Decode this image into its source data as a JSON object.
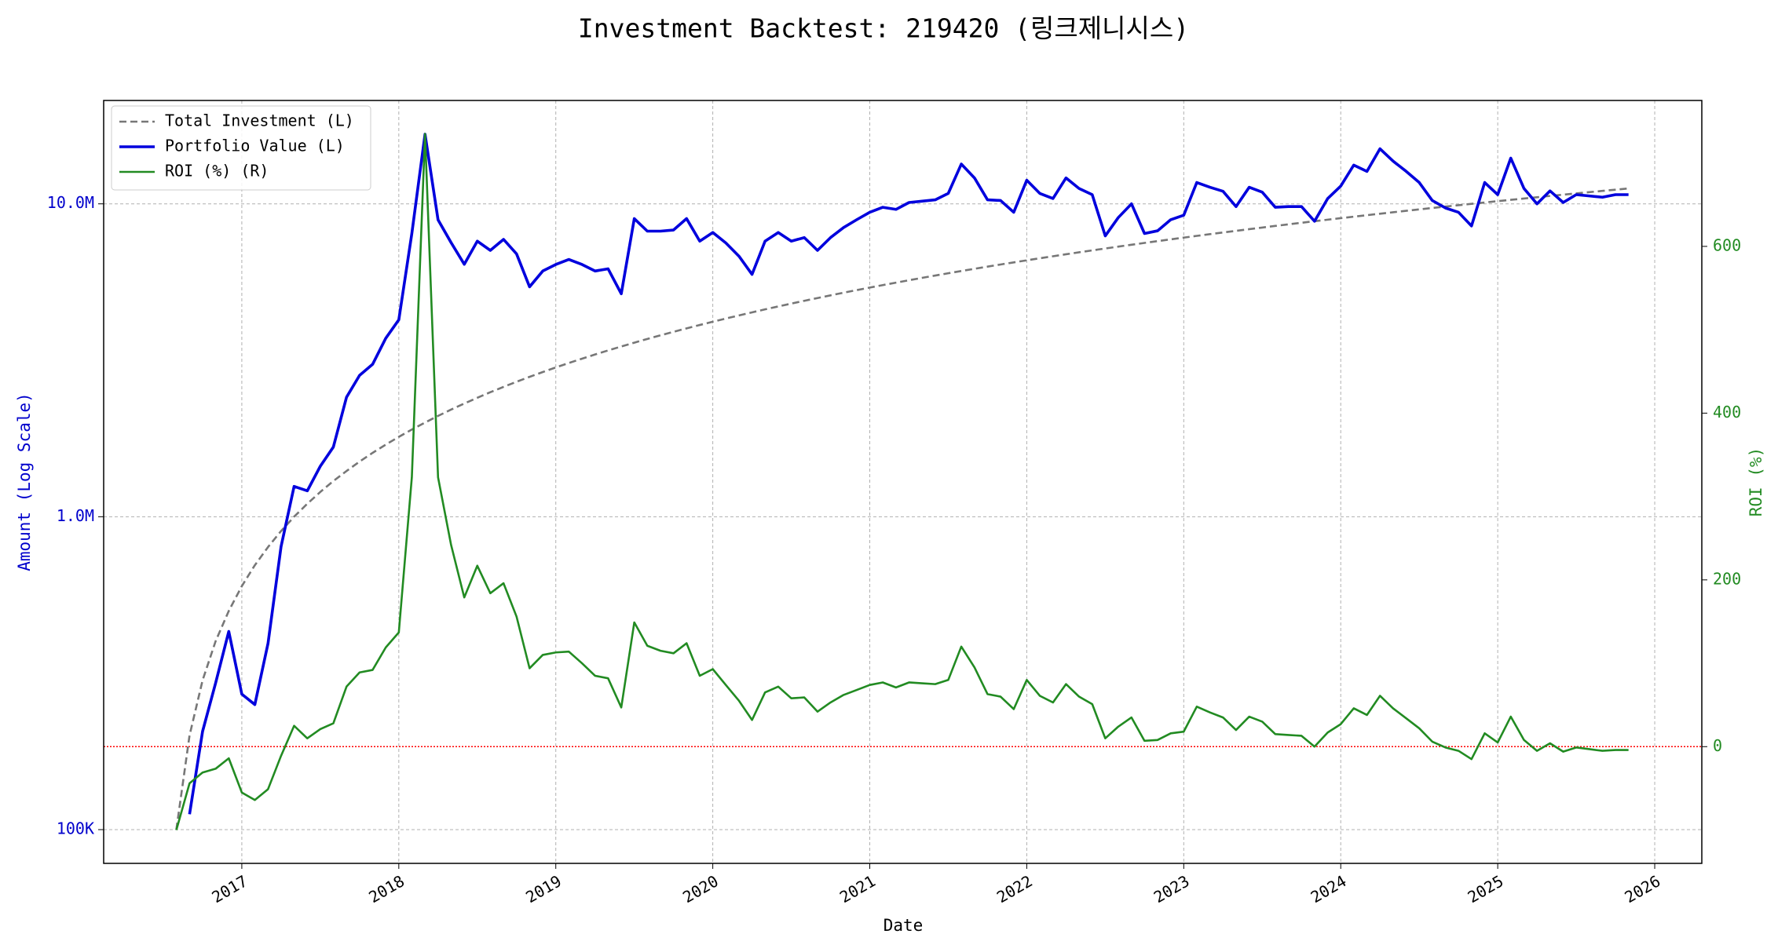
{
  "chart_data": {
    "type": "line",
    "title": "Investment Backtest: 219420 (링크제니시스)",
    "xlabel": "Date",
    "ylabel": "Amount (Log Scale)",
    "y2label": "ROI (%)",
    "yscale": "log",
    "grid": true,
    "legend": "upper left",
    "ylabel_color": "#0000cc",
    "y2label_color": "#228b22",
    "reference_line": {
      "axis": "y2",
      "value": 0,
      "color": "#ff0000"
    },
    "xlim": [
      2016.12,
      2026.3
    ],
    "xticks": [
      2017,
      2018,
      2019,
      2020,
      2021,
      2022,
      2023,
      2024,
      2025,
      2026
    ],
    "ylim": [
      78000,
      21400000
    ],
    "yticks": [
      {
        "value": 100000,
        "label": "100K"
      },
      {
        "value": 1000000,
        "label": "1.0M"
      },
      {
        "value": 10000000,
        "label": "10.0M"
      }
    ],
    "y2lim": [
      -140,
      775
    ],
    "y2ticks": [
      0,
      200,
      400,
      600
    ],
    "x": [
      2016.583,
      2016.667,
      2016.75,
      2016.833,
      2016.917,
      2017.0,
      2017.083,
      2017.167,
      2017.25,
      2017.333,
      2017.417,
      2017.5,
      2017.583,
      2017.667,
      2017.75,
      2017.833,
      2017.917,
      2018.0,
      2018.083,
      2018.167,
      2018.25,
      2018.333,
      2018.417,
      2018.5,
      2018.583,
      2018.667,
      2018.75,
      2018.833,
      2018.917,
      2019.0,
      2019.083,
      2019.167,
      2019.25,
      2019.333,
      2019.417,
      2019.5,
      2019.583,
      2019.667,
      2019.75,
      2019.833,
      2019.917,
      2020.0,
      2020.083,
      2020.167,
      2020.25,
      2020.333,
      2020.417,
      2020.5,
      2020.583,
      2020.667,
      2020.75,
      2020.833,
      2020.917,
      2021.0,
      2021.083,
      2021.167,
      2021.25,
      2021.333,
      2021.417,
      2021.5,
      2021.583,
      2021.667,
      2021.75,
      2021.833,
      2021.917,
      2022.0,
      2022.083,
      2022.167,
      2022.25,
      2022.333,
      2022.417,
      2022.5,
      2022.583,
      2022.667,
      2022.75,
      2022.833,
      2022.917,
      2023.0,
      2023.083,
      2023.167,
      2023.25,
      2023.333,
      2023.417,
      2023.5,
      2023.583,
      2023.667,
      2023.75,
      2023.833,
      2023.917,
      2024.0,
      2024.083,
      2024.167,
      2024.25,
      2024.333,
      2024.417,
      2024.5,
      2024.583,
      2024.667,
      2024.75,
      2024.833,
      2024.917,
      2025.0,
      2025.083,
      2025.167,
      2025.25,
      2025.333,
      2025.417,
      2025.5,
      2025.583,
      2025.667,
      2025.75,
      2025.833
    ],
    "series": [
      {
        "name": "Total Investment (L)",
        "color": "#777777",
        "style": "dashed",
        "axis": "y",
        "values": [
          100000,
          200000,
          300000,
          400000,
          500000,
          600000,
          700000,
          800000,
          900000,
          1000000,
          1100000,
          1200000,
          1300000,
          1400000,
          1500000,
          1600000,
          1700000,
          1800000,
          1900000,
          2000000,
          2100000,
          2200000,
          2300000,
          2400000,
          2500000,
          2600000,
          2700000,
          2800000,
          2900000,
          3000000,
          3100000,
          3200000,
          3300000,
          3400000,
          3500000,
          3600000,
          3700000,
          3800000,
          3900000,
          4000000,
          4100000,
          4200000,
          4300000,
          4400000,
          4500000,
          4600000,
          4700000,
          4800000,
          4900000,
          5000000,
          5100000,
          5200000,
          5300000,
          5400000,
          5500000,
          5600000,
          5700000,
          5800000,
          5900000,
          6000000,
          6100000,
          6200000,
          6300000,
          6400000,
          6500000,
          6600000,
          6700000,
          6800000,
          6900000,
          7000000,
          7100000,
          7200000,
          7300000,
          7400000,
          7500000,
          7600000,
          7700000,
          7800000,
          7900000,
          8000000,
          8100000,
          8200000,
          8300000,
          8400000,
          8500000,
          8600000,
          8700000,
          8800000,
          8900000,
          9000000,
          9100000,
          9200000,
          9300000,
          9400000,
          9500000,
          9600000,
          9700000,
          9800000,
          9900000,
          10000000,
          10100000,
          10200000,
          10300000,
          10400000,
          10500000,
          10600000,
          10700000,
          10800000,
          10900000,
          11000000,
          11100000,
          11200000
        ]
      },
      {
        "name": "Portfolio Value (L)",
        "color": "#0000dd",
        "style": "solid",
        "axis": "y",
        "values": [
          null,
          112000,
          206000,
          294000,
          430000,
          271000,
          251000,
          394000,
          803000,
          1250000,
          1210000,
          1450000,
          1670000,
          2410000,
          2830000,
          3070000,
          3720000,
          4260000,
          8040000,
          16700000,
          8890000,
          7520000,
          6410000,
          7600000,
          7100000,
          7700000,
          6920000,
          5430000,
          6100000,
          6400000,
          6640000,
          6400000,
          6100000,
          6200000,
          5160000,
          8970000,
          8180000,
          8180000,
          8250000,
          8970000,
          7600000,
          8100000,
          7500000,
          6800000,
          5950000,
          7600000,
          8100000,
          7600000,
          7800000,
          7100000,
          7800000,
          8400000,
          8900000,
          9400000,
          9750000,
          9600000,
          10100000,
          10200000,
          10300000,
          10800000,
          13400000,
          12100000,
          10300000,
          10250000,
          9400000,
          11900000,
          10800000,
          10400000,
          12100000,
          11200000,
          10700000,
          7900000,
          9040000,
          10000000,
          8040000,
          8200000,
          8900000,
          9200000,
          11700000,
          11300000,
          10970000,
          9800000,
          11300000,
          10900000,
          9750000,
          9800000,
          9800000,
          8800000,
          10400000,
          11400000,
          13300000,
          12700000,
          15000000,
          13700000,
          12700000,
          11700000,
          10250000,
          9700000,
          9400000,
          8500000,
          11700000,
          10700000,
          14000000,
          11200000,
          10000000,
          11000000,
          10100000,
          10700000,
          10600000,
          10500000,
          10700000,
          10700000
        ]
      },
      {
        "name": "ROI (%) (R)",
        "color": "#228b22",
        "style": "solid",
        "axis": "y2",
        "values": [
          -100,
          -44,
          -31,
          -26.5,
          -14,
          -55,
          -64,
          -51,
          -11,
          25,
          10,
          21,
          28,
          72,
          89,
          92,
          119,
          137,
          323,
          735,
          323,
          242,
          179,
          217,
          184,
          196,
          156,
          94,
          110,
          113,
          114,
          100,
          85,
          82,
          47,
          149,
          121,
          115,
          112,
          124,
          85,
          93,
          74,
          55,
          32,
          65,
          72,
          58,
          59,
          42,
          53,
          62,
          68,
          74,
          77,
          71,
          77,
          76,
          75,
          80,
          120,
          95,
          63,
          60,
          45,
          80,
          61,
          53,
          75,
          60,
          51,
          10,
          24,
          35,
          7,
          8,
          16,
          18,
          48,
          41,
          35,
          20,
          36,
          30,
          15,
          14,
          13,
          0,
          17,
          27,
          46,
          38,
          61,
          46,
          34,
          22,
          6,
          -1,
          -5,
          -15,
          16,
          5,
          36,
          8,
          -5,
          4,
          -6,
          -1,
          -3,
          -5,
          -4,
          -4
        ]
      }
    ]
  }
}
